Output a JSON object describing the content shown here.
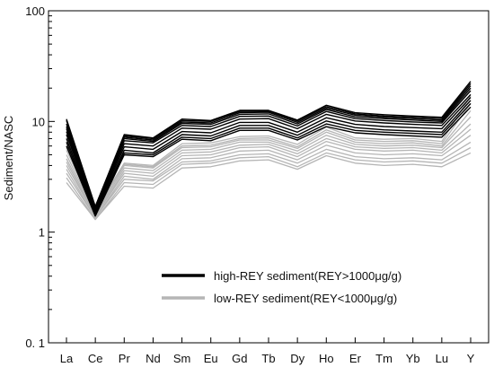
{
  "chart_data": {
    "type": "line",
    "title": "",
    "xlabel": "",
    "ylabel": "Sediment/NASC",
    "yscale": "log",
    "ylim": [
      0.1,
      100
    ],
    "yticks": [
      {
        "value": 100,
        "label": "100"
      },
      {
        "value": 10,
        "label": "10"
      },
      {
        "value": 1,
        "label": "1"
      },
      {
        "value": 0.1,
        "label": "0. 1"
      }
    ],
    "categories": [
      "La",
      "Ce",
      "Pr",
      "Nd",
      "Sm",
      "Eu",
      "Gd",
      "Tb",
      "Dy",
      "Ho",
      "Er",
      "Tm",
      "Yb",
      "Lu",
      "Y"
    ],
    "grid": false,
    "legend_position": "bottom-right",
    "legend": [
      {
        "label": "high-REY sediment(REY>1000μg/g)",
        "color": "#000000"
      },
      {
        "label": "low-REY sediment(REY<1000μg/g)",
        "color": "#b5b5b5"
      }
    ],
    "series": [
      {
        "group": 0,
        "values": [
          10.5,
          1.7,
          7.6,
          7.1,
          10.5,
          10.2,
          12.6,
          12.6,
          10.3,
          14.0,
          12.0,
          11.5,
          11.2,
          10.9,
          23.0
        ]
      },
      {
        "group": 0,
        "values": [
          10.2,
          1.7,
          7.4,
          7.0,
          10.2,
          10.0,
          12.3,
          12.4,
          10.1,
          13.6,
          11.7,
          11.2,
          10.9,
          10.6,
          22.0
        ]
      },
      {
        "group": 0,
        "values": [
          9.5,
          1.65,
          7.2,
          6.8,
          9.9,
          9.7,
          12.0,
          12.1,
          9.8,
          13.2,
          11.4,
          10.9,
          10.6,
          10.3,
          21.0
        ]
      },
      {
        "group": 0,
        "values": [
          9.0,
          1.6,
          7.0,
          6.6,
          9.6,
          9.4,
          11.6,
          11.7,
          9.5,
          12.8,
          11.0,
          10.6,
          10.3,
          10.0,
          20.0
        ]
      },
      {
        "group": 0,
        "values": [
          8.6,
          1.6,
          6.7,
          6.4,
          9.2,
          9.0,
          11.1,
          11.2,
          9.1,
          12.3,
          10.6,
          10.2,
          9.9,
          9.7,
          19.0
        ]
      },
      {
        "group": 0,
        "values": [
          8.1,
          1.55,
          6.3,
          6.0,
          8.7,
          8.5,
          10.5,
          10.6,
          8.6,
          11.6,
          10.1,
          9.7,
          9.4,
          9.2,
          17.5
        ]
      },
      {
        "group": 0,
        "values": [
          7.6,
          1.5,
          5.9,
          5.6,
          8.1,
          7.9,
          9.8,
          9.8,
          8.0,
          10.8,
          9.4,
          9.0,
          8.8,
          8.6,
          16.5
        ]
      },
      {
        "group": 0,
        "values": [
          7.0,
          1.45,
          5.5,
          5.2,
          7.6,
          7.4,
          9.2,
          9.2,
          7.5,
          10.1,
          8.8,
          8.4,
          8.2,
          8.0,
          15.5
        ]
      },
      {
        "group": 0,
        "values": [
          6.5,
          1.4,
          5.2,
          5.0,
          7.2,
          7.0,
          8.7,
          8.7,
          7.1,
          9.5,
          8.3,
          8.0,
          7.8,
          7.6,
          14.5
        ]
      },
      {
        "group": 0,
        "values": [
          6.0,
          1.4,
          5.0,
          4.8,
          6.9,
          6.7,
          8.3,
          8.3,
          6.8,
          9.0,
          7.9,
          7.6,
          7.4,
          7.2,
          13.5
        ]
      },
      {
        "group": 1,
        "values": [
          5.8,
          1.6,
          4.2,
          4.0,
          6.3,
          6.4,
          7.3,
          7.4,
          6.2,
          8.9,
          7.1,
          6.9,
          7.0,
          6.6,
          17.0
        ]
      },
      {
        "group": 1,
        "values": [
          5.5,
          1.55,
          4.1,
          3.9,
          6.0,
          6.1,
          7.0,
          7.1,
          5.9,
          8.4,
          6.8,
          6.6,
          6.7,
          6.3,
          14.5
        ]
      },
      {
        "group": 1,
        "values": [
          5.0,
          1.5,
          4.0,
          3.8,
          5.8,
          5.9,
          6.8,
          6.8,
          5.7,
          8.0,
          6.5,
          6.3,
          6.4,
          6.0,
          12.5
        ]
      },
      {
        "group": 1,
        "values": [
          4.6,
          1.45,
          3.8,
          3.6,
          5.5,
          5.6,
          6.5,
          6.5,
          5.4,
          7.5,
          6.2,
          6.0,
          6.1,
          5.8,
          11.0
        ]
      },
      {
        "group": 1,
        "values": [
          4.3,
          1.4,
          3.6,
          3.4,
          5.2,
          5.3,
          6.1,
          6.2,
          5.1,
          7.0,
          5.9,
          5.7,
          5.8,
          5.5,
          9.5
        ]
      },
      {
        "group": 1,
        "values": [
          4.0,
          1.4,
          3.4,
          3.2,
          4.9,
          5.0,
          5.8,
          5.9,
          4.8,
          6.6,
          5.6,
          5.4,
          5.5,
          5.2,
          8.5
        ]
      },
      {
        "group": 1,
        "values": [
          3.7,
          1.35,
          3.2,
          3.0,
          4.6,
          4.7,
          5.4,
          5.5,
          4.5,
          6.1,
          5.2,
          5.0,
          5.1,
          4.9,
          7.5
        ]
      },
      {
        "group": 1,
        "values": [
          3.4,
          1.35,
          3.0,
          2.9,
          4.3,
          4.4,
          5.0,
          5.1,
          4.2,
          5.6,
          4.8,
          4.6,
          4.7,
          4.5,
          6.5
        ]
      },
      {
        "group": 1,
        "values": [
          3.1,
          1.3,
          2.8,
          2.7,
          4.1,
          4.2,
          4.7,
          4.8,
          3.9,
          5.2,
          4.5,
          4.3,
          4.4,
          4.2,
          5.8
        ]
      },
      {
        "group": 1,
        "values": [
          2.8,
          1.3,
          2.6,
          2.5,
          3.8,
          3.9,
          4.4,
          4.5,
          3.7,
          4.9,
          4.2,
          4.0,
          4.1,
          3.9,
          5.2
        ]
      }
    ]
  }
}
